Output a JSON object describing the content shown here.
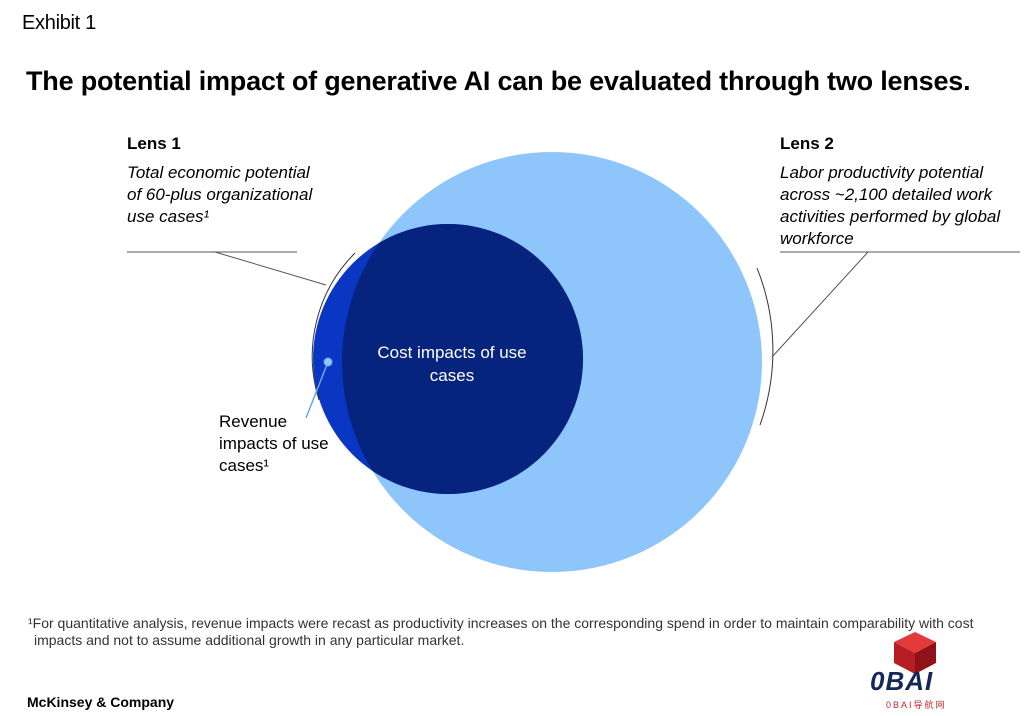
{
  "exhibit": "Exhibit 1",
  "title": "The potential impact of generative AI can be evaluated through two lenses.",
  "lens1": {
    "heading": "Lens 1",
    "description": "Total economic potential of 60-plus organizational use cases¹"
  },
  "lens2": {
    "heading": "Lens 2",
    "description": "Labor productivity potential across ~2,100 detailed work activities performed by global workforce"
  },
  "diagram": {
    "inner_label": "Cost impacts of use cases",
    "edge_label": "Revenue impacts of use cases¹",
    "colors": {
      "lens2_circle": "#8ec5fb",
      "lens1_circle": "#0a36c4",
      "overlap": "#06247e",
      "pointer": "#6ea6e0"
    }
  },
  "footnote": {
    "line1": "¹For quantitative analysis, revenue impacts were recast as productivity increases on the corresponding spend in order to maintain comparability with cost",
    "line2": "impacts and not to assume additional growth in any particular market."
  },
  "brand": "McKinsey & Company",
  "watermark": {
    "logo": "0BAI",
    "sub": "0BAI导航网"
  }
}
